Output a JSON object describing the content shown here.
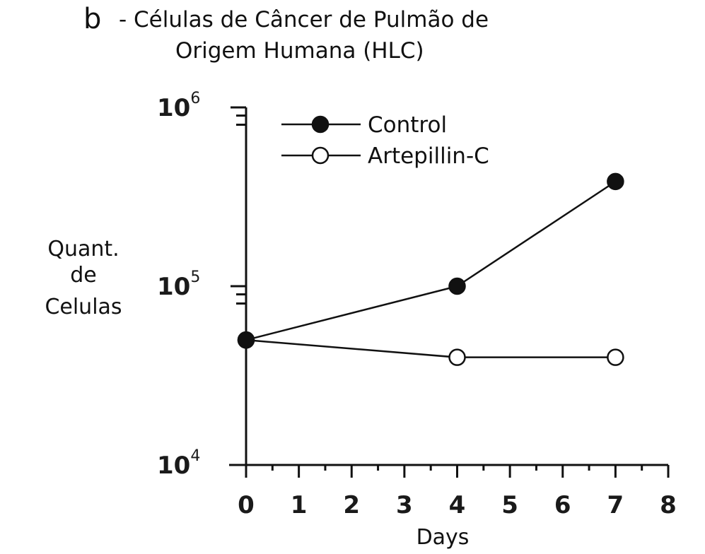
{
  "chart_data": {
    "type": "line",
    "panel_label": "b",
    "title_line1": "- Células de Câncer de Pulmão de",
    "title_line2": "Origem Humana (HLC)",
    "xlabel": "Days",
    "ylabel": [
      "Quant.",
      "de",
      "Celulas"
    ],
    "yscale": "log",
    "ylim": [
      10000,
      1000000
    ],
    "xlim": [
      0,
      8
    ],
    "x_ticks": [
      "0",
      "1",
      "2",
      "3",
      "4",
      "5",
      "6",
      "7",
      "8"
    ],
    "y_ticks": [
      {
        "base": "10",
        "exp": "4",
        "value": 10000
      },
      {
        "base": "10",
        "exp": "5",
        "value": 100000
      },
      {
        "base": "10",
        "exp": "6",
        "value": 1000000
      }
    ],
    "legend_position": "top-left",
    "series": [
      {
        "name": "Control",
        "marker": "filled-circle",
        "x": [
          0,
          4,
          7
        ],
        "y": [
          50000,
          100000,
          385000
        ]
      },
      {
        "name": "Artepillin-C",
        "marker": "open-circle",
        "x": [
          0,
          4,
          7
        ],
        "y": [
          50000,
          40000,
          40000
        ]
      }
    ]
  }
}
